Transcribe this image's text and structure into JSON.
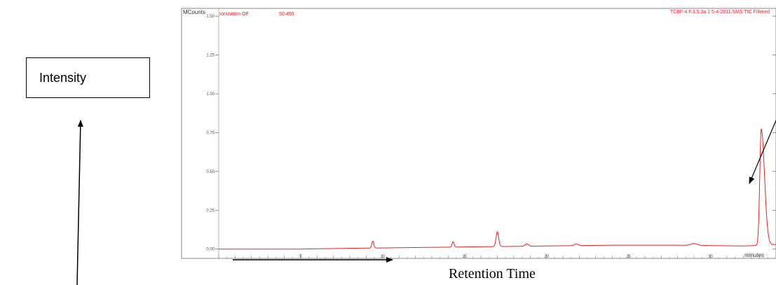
{
  "chart_data": {
    "type": "line",
    "y_unit": "MCounts",
    "x_unit": "minutes",
    "header_left": "Ionization Off",
    "header_mid": "50:450",
    "header_right": "TCBF-4 F.3.5.3a 1 5-4-2011.SMS TIC Filtered",
    "xlim": [
      0,
      34
    ],
    "ylim": [
      -0.06,
      1.55
    ],
    "x_ticks": [
      "5",
      "10",
      "15",
      "20",
      "25",
      "30"
    ],
    "y_ticks": [
      "0.00",
      "0.25",
      "0.50",
      "0.75",
      "1.00",
      "1.25",
      "1.50"
    ],
    "baseline": [
      [
        0,
        0.0
      ],
      [
        5,
        0.0
      ],
      [
        8,
        0.005
      ],
      [
        12,
        0.01
      ],
      [
        16,
        0.015
      ],
      [
        20,
        0.02
      ],
      [
        24,
        0.025
      ],
      [
        28,
        0.025
      ],
      [
        32,
        0.02
      ],
      [
        33.5,
        0.025
      ],
      [
        34,
        0.03
      ]
    ],
    "peaks": [
      {
        "x": 9.4,
        "y": 0.045,
        "w": 0.06
      },
      {
        "x": 14.3,
        "y": 0.035,
        "w": 0.06
      },
      {
        "x": 17.0,
        "y": 0.095,
        "w": 0.08
      },
      {
        "x": 18.8,
        "y": 0.015,
        "w": 0.1
      },
      {
        "x": 21.8,
        "y": 0.01,
        "w": 0.12
      },
      {
        "x": 29.0,
        "y": 0.012,
        "w": 0.2
      },
      {
        "x": 33.1,
        "y": 0.75,
        "w": 0.09
      }
    ],
    "line_color": "#ee2222"
  },
  "annotations": {
    "intensity_label": "Intensity",
    "retention_time_label": "Retention Time"
  }
}
